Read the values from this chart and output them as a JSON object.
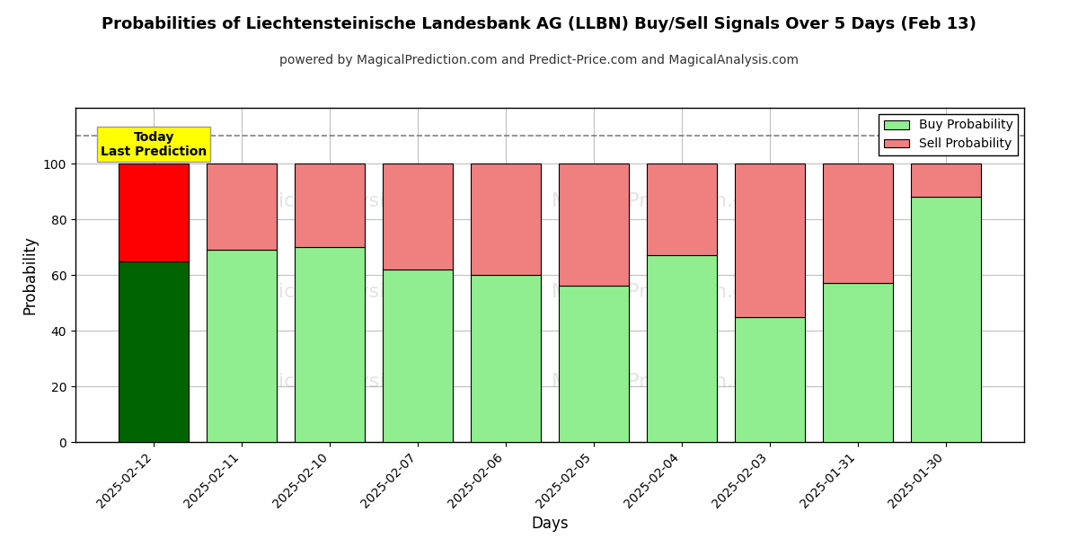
{
  "title": "Probabilities of Liechtensteinische Landesbank AG (LLBN) Buy/Sell Signals Over 5 Days (Feb 13)",
  "subtitle": "powered by MagicalPrediction.com and Predict-Price.com and MagicalAnalysis.com",
  "xlabel": "Days",
  "ylabel": "Probability",
  "categories": [
    "2025-02-12",
    "2025-02-11",
    "2025-02-10",
    "2025-02-07",
    "2025-02-06",
    "2025-02-05",
    "2025-02-04",
    "2025-02-03",
    "2025-01-31",
    "2025-01-30"
  ],
  "buy_values": [
    65,
    69,
    70,
    62,
    60,
    56,
    67,
    45,
    57,
    88
  ],
  "sell_values": [
    35,
    31,
    30,
    38,
    40,
    44,
    33,
    55,
    43,
    12
  ],
  "today_idx": 0,
  "today_buy_color": "#006400",
  "today_sell_color": "#ff0000",
  "normal_buy_color": "#90ee90",
  "normal_sell_color": "#f08080",
  "bar_edge_color": "#000000",
  "ylim": [
    0,
    120
  ],
  "yticks": [
    0,
    20,
    40,
    60,
    80,
    100
  ],
  "dashed_line_y": 110,
  "dashed_line_color": "#808080",
  "today_label_text": "Today\nLast Prediction",
  "today_label_bg": "#ffff00",
  "legend_buy_color": "#90ee90",
  "legend_sell_color": "#f08080",
  "legend_buy_label": "Buy Probability",
  "legend_sell_label": "Sell Probability",
  "background_color": "#ffffff",
  "grid_color": "#c0c0c0",
  "title_fontsize": 13,
  "subtitle_fontsize": 10,
  "axis_label_fontsize": 12,
  "tick_fontsize": 10,
  "bar_width": 0.8
}
